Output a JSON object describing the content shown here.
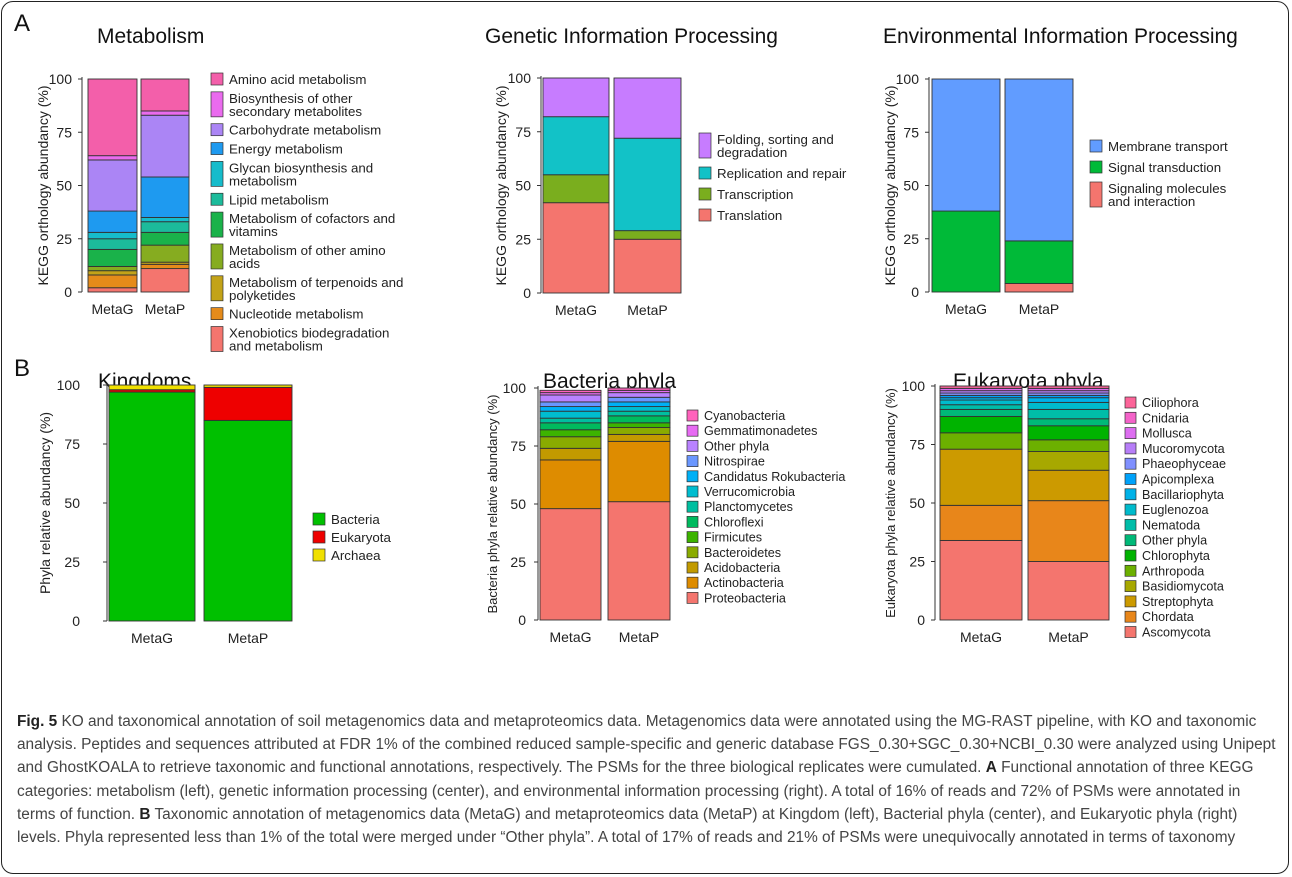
{
  "panel_letters": {
    "a": "A",
    "b": "B"
  },
  "caption": {
    "fig_label": "Fig. 5",
    "text1": " KO and taxonomical annotation of soil metagenomics data and metaproteomics data. Metagenomics data were annotated using the MG-RAST pipeline, with KO and taxonomic analysis. Peptides and sequences attributed at FDR 1% of the combined reduced sample-specific and generic database FGS_0.30+SGC_0.30+NCBI_0.30 were analyzed using Unipept and GhostKOALA to retrieve taxonomic and functional annotations, respectively. The PSMs for the three biological replicates were cumulated. ",
    "label_a": "A",
    "text2": " Functional annotation of three KEGG categories: metabolism (left), genetic information processing (center), and environmental information processing (right). A total of 16% of reads and 72% of PSMs were annotated in terms of function. ",
    "label_b": "B",
    "text3": " Taxonomic annotation of metagenomics data (MetaG) and metaproteomics data (MetaP) at Kingdom (left), Bacterial phyla (center), and Eukaryotic phyla (right) levels. Phyla represented less than 1% of the total were merged under “Other phyla”. A total of 17% of reads and 21% of PSMs were unequivocally annotated in terms of taxonomy"
  },
  "chart_data": [
    {
      "type": "bar",
      "stacked": true,
      "title": "Metabolism",
      "ylabel": "KEGG orthology abundancy (%)",
      "ylim": [
        0,
        100
      ],
      "yticks": [
        0,
        25,
        50,
        75,
        100
      ],
      "categories": [
        "MetaG",
        "MetaP"
      ],
      "series": [
        {
          "name": "Xenobiotics biodegradation and metabolism",
          "color": "#F4756E",
          "values": [
            2,
            11
          ]
        },
        {
          "name": "Nucleotide metabolism",
          "color": "#E58B1A",
          "values": [
            6,
            2
          ]
        },
        {
          "name": "Metabolism of terpenoids and polyketides",
          "color": "#C3A318",
          "values": [
            2,
            1
          ]
        },
        {
          "name": "Metabolism of other amino acids",
          "color": "#86AC20",
          "values": [
            2,
            8
          ]
        },
        {
          "name": "Metabolism of cofactors and vitamins",
          "color": "#1AB24A",
          "values": [
            8,
            6
          ]
        },
        {
          "name": "Lipid metabolism",
          "color": "#1CBB9B",
          "values": [
            5,
            5
          ]
        },
        {
          "name": "Glycan biosynthesis and metabolism",
          "color": "#16BCCB",
          "values": [
            3,
            2
          ]
        },
        {
          "name": "Energy metabolism",
          "color": "#1E9AF0",
          "values": [
            10,
            19
          ]
        },
        {
          "name": "Carbohydrate metabolism",
          "color": "#AB85F5",
          "values": [
            24,
            29
          ]
        },
        {
          "name": "Biosynthesis of other secondary metabolites",
          "color": "#EA6BEE",
          "values": [
            2,
            2
          ]
        },
        {
          "name": "Amino acid metabolism",
          "color": "#F35FAA",
          "values": [
            36,
            15
          ]
        }
      ],
      "legend": [
        "Amino acid metabolism",
        "Biosynthesis of other secondary metabolites",
        "Carbohydrate metabolism",
        "Energy metabolism",
        "Glycan biosynthesis and metabolism",
        "Lipid metabolism",
        "Metabolism of cofactors and vitamins",
        "Metabolism of other amino acids",
        "Metabolism of terpenoids and polyketides",
        "Nucleotide metabolism",
        "Xenobiotics biodegradation and metabolism"
      ],
      "legend_position": "right"
    },
    {
      "type": "bar",
      "stacked": true,
      "title": "Genetic Information Processing",
      "ylabel": "KEGG orthology abundancy (%)",
      "ylim": [
        0,
        100
      ],
      "yticks": [
        0,
        25,
        50,
        75,
        100
      ],
      "categories": [
        "MetaG",
        "MetaP"
      ],
      "series": [
        {
          "name": "Translation",
          "color": "#F4756E",
          "values": [
            42,
            25
          ]
        },
        {
          "name": "Transcription",
          "color": "#7AAE1E",
          "values": [
            13,
            4
          ]
        },
        {
          "name": "Replication and repair",
          "color": "#12C2C7",
          "values": [
            27,
            43
          ]
        },
        {
          "name": "Folding, sorting and degradation",
          "color": "#C77CFF",
          "values": [
            18,
            28
          ]
        }
      ],
      "legend": [
        "Folding, sorting and degradation",
        "Replication and repair",
        "Transcription",
        "Translation"
      ],
      "legend_position": "right"
    },
    {
      "type": "bar",
      "stacked": true,
      "title": "Environmental Information Processing",
      "ylabel": "KEGG orthology abundancy (%)",
      "ylim": [
        0,
        100
      ],
      "yticks": [
        0,
        25,
        50,
        75,
        100
      ],
      "categories": [
        "MetaG",
        "MetaP"
      ],
      "series": [
        {
          "name": "Signaling molecules and interaction",
          "color": "#F4756E",
          "values": [
            0,
            4
          ]
        },
        {
          "name": "Signal transduction",
          "color": "#00BA38",
          "values": [
            38,
            20
          ]
        },
        {
          "name": "Membrane transport",
          "color": "#619CFF",
          "values": [
            62,
            76
          ]
        }
      ],
      "legend": [
        "Membrane transport",
        "Signal transduction",
        "Signaling molecules and interaction"
      ],
      "legend_position": "right"
    },
    {
      "type": "bar",
      "stacked": true,
      "title": "Kingdoms",
      "ylabel": "Phyla relative abundancy (%)",
      "ylim": [
        0,
        100
      ],
      "yticks": [
        0,
        25,
        50,
        75,
        100
      ],
      "categories": [
        "MetaG",
        "MetaP"
      ],
      "series": [
        {
          "name": "Bacteria",
          "color": "#00C000",
          "values": [
            97,
            85
          ]
        },
        {
          "name": "Eukaryota",
          "color": "#EE0000",
          "values": [
            1,
            14
          ]
        },
        {
          "name": "Archaea",
          "color": "#F0E000",
          "values": [
            2,
            1
          ]
        }
      ],
      "legend": [
        "Bacteria",
        "Eukaryota",
        "Archaea"
      ],
      "legend_position": "right"
    },
    {
      "type": "bar",
      "stacked": true,
      "title": "Bacteria phyla",
      "ylabel": "Bacteria phyla relative abundancy (%)",
      "ylim": [
        0,
        100
      ],
      "yticks": [
        0,
        25,
        50,
        75,
        100
      ],
      "categories": [
        "MetaG",
        "MetaP"
      ],
      "series": [
        {
          "name": "Proteobacteria",
          "color": "#F4756E",
          "values": [
            48,
            51
          ]
        },
        {
          "name": "Actinobacteria",
          "color": "#DE8C00",
          "values": [
            21,
            26
          ]
        },
        {
          "name": "Acidobacteria",
          "color": "#C29A00",
          "values": [
            5,
            3
          ]
        },
        {
          "name": "Bacteroidetes",
          "color": "#8AAB00",
          "values": [
            5,
            3
          ]
        },
        {
          "name": "Firmicutes",
          "color": "#3DB400",
          "values": [
            3,
            2
          ]
        },
        {
          "name": "Chloroflexi",
          "color": "#00BA5E",
          "values": [
            3,
            3
          ]
        },
        {
          "name": "Planctomycetes",
          "color": "#00BFA0",
          "values": [
            2,
            2
          ]
        },
        {
          "name": "Verrucomicrobia",
          "color": "#00BDD0",
          "values": [
            3,
            2
          ]
        },
        {
          "name": "Candidatus Rokubacteria",
          "color": "#00B0F6",
          "values": [
            2,
            2
          ]
        },
        {
          "name": "Nitrospirae",
          "color": "#6A97FF",
          "values": [
            2,
            2
          ]
        },
        {
          "name": "Other phyla",
          "color": "#B982FF",
          "values": [
            3,
            2
          ]
        },
        {
          "name": "Gemmatimonadetes",
          "color": "#E76BF3",
          "values": [
            1,
            1
          ]
        },
        {
          "name": "Cyanobacteria",
          "color": "#FF62BC",
          "values": [
            1,
            1
          ]
        }
      ],
      "legend": [
        "Cyanobacteria",
        "Gemmatimonadetes",
        "Other phyla",
        "Nitrospirae",
        "Candidatus Rokubacteria",
        "Verrucomicrobia",
        "Planctomycetes",
        "Chloroflexi",
        "Firmicutes",
        "Bacteroidetes",
        "Acidobacteria",
        "Actinobacteria",
        "Proteobacteria"
      ],
      "legend_position": "right"
    },
    {
      "type": "bar",
      "stacked": true,
      "title": "Eukaryota phyla",
      "ylabel": "Eukaryota phyla relative abundancy (%)",
      "ylim": [
        0,
        100
      ],
      "yticks": [
        0,
        25,
        50,
        75,
        100
      ],
      "categories": [
        "MetaG",
        "MetaP"
      ],
      "series": [
        {
          "name": "Ascomycota",
          "color": "#F4756E",
          "values": [
            34,
            25
          ]
        },
        {
          "name": "Chordata",
          "color": "#E8861A",
          "values": [
            15,
            26
          ]
        },
        {
          "name": "Streptophyta",
          "color": "#CC9A00",
          "values": [
            24,
            13
          ]
        },
        {
          "name": "Basidiomycota",
          "color": "#A7A800",
          "values": [
            0,
            8
          ]
        },
        {
          "name": "Arthropoda",
          "color": "#6CB000",
          "values": [
            7,
            5
          ]
        },
        {
          "name": "Chlorophyta",
          "color": "#00B300",
          "values": [
            7,
            6
          ]
        },
        {
          "name": "Other phyla",
          "color": "#00B978",
          "values": [
            3,
            3
          ]
        },
        {
          "name": "Nematoda",
          "color": "#00BDA8",
          "values": [
            2,
            4
          ]
        },
        {
          "name": "Euglenozoa",
          "color": "#00BBCC",
          "values": [
            2,
            3
          ]
        },
        {
          "name": "Bacillariophyta",
          "color": "#00B2E8",
          "values": [
            1,
            2
          ]
        },
        {
          "name": "Apicomplexa",
          "color": "#00A2FA",
          "values": [
            1,
            1
          ]
        },
        {
          "name": "Phaeophyceae",
          "color": "#8090FF",
          "values": [
            1,
            1
          ]
        },
        {
          "name": "Mucoromycota",
          "color": "#B77EF8",
          "values": [
            1,
            1
          ]
        },
        {
          "name": "Mollusca",
          "color": "#DD6EF0",
          "values": [
            1,
            1
          ]
        },
        {
          "name": "Cnidaria",
          "color": "#F463C9",
          "values": [
            0,
            0
          ]
        },
        {
          "name": "Ciliophora",
          "color": "#FC6499",
          "values": [
            1,
            1
          ]
        }
      ],
      "legend": [
        "Ciliophora",
        "Cnidaria",
        "Mollusca",
        "Mucoromycota",
        "Phaeophyceae",
        "Apicomplexa",
        "Bacillariophyta",
        "Euglenozoa",
        "Nematoda",
        "Other phyla",
        "Chlorophyta",
        "Arthropoda",
        "Basidiomycota",
        "Streptophyta",
        "Chordata",
        "Ascomycota"
      ],
      "legend_position": "right"
    }
  ]
}
